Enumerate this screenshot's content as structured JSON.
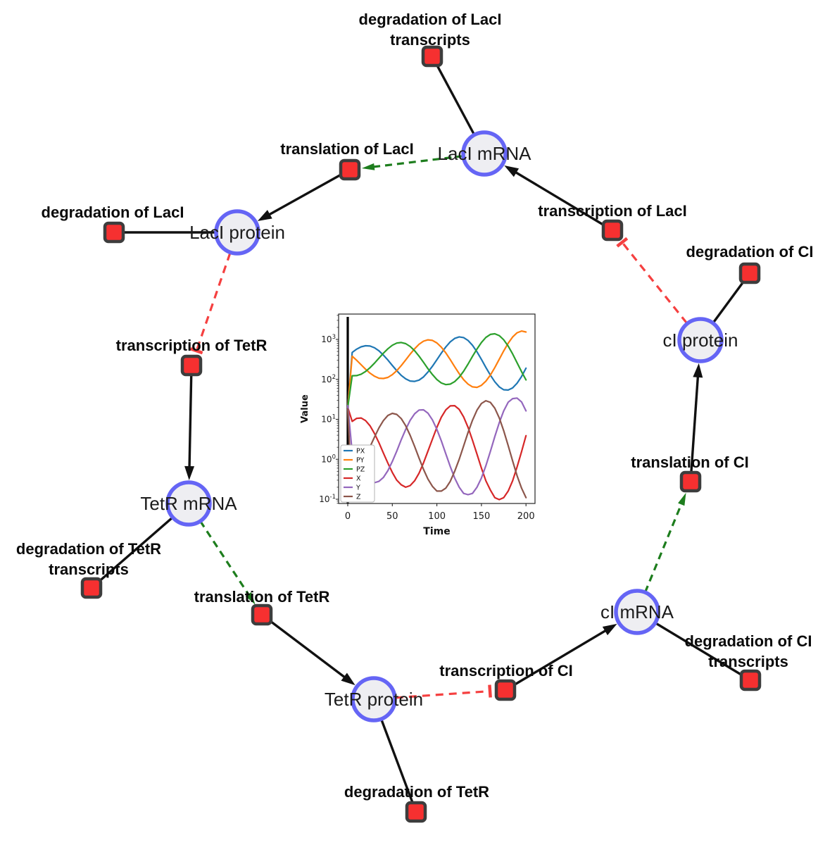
{
  "diagram": {
    "species_nodes": [
      {
        "id": "laci_mrna",
        "label": "LacI mRNA"
      },
      {
        "id": "laci_protein",
        "label": "LacI protein"
      },
      {
        "id": "tetr_mrna",
        "label": "TetR mRNA"
      },
      {
        "id": "tetr_protein",
        "label": "TetR protein"
      },
      {
        "id": "ci_mrna",
        "label": "cI mRNA"
      },
      {
        "id": "ci_protein",
        "label": "cI protein"
      }
    ],
    "reaction_nodes": [
      {
        "id": "deg_laci_tx",
        "label_lines": [
          "degradation of LacI",
          "transcripts"
        ]
      },
      {
        "id": "transl_laci",
        "label_lines": [
          "translation of LacI"
        ]
      },
      {
        "id": "deg_laci",
        "label_lines": [
          "degradation of LacI"
        ]
      },
      {
        "id": "tx_laci",
        "label_lines": [
          "transcription of LacI"
        ]
      },
      {
        "id": "deg_ci",
        "label_lines": [
          "degradation of CI"
        ]
      },
      {
        "id": "tx_tetr",
        "label_lines": [
          "transcription of TetR"
        ]
      },
      {
        "id": "deg_tetr_tx",
        "label_lines": [
          "degradation of TetR",
          "transcripts"
        ]
      },
      {
        "id": "transl_tetr",
        "label_lines": [
          "translation of TetR"
        ]
      },
      {
        "id": "deg_tetr",
        "label_lines": [
          "degradation of TetR"
        ]
      },
      {
        "id": "tx_ci",
        "label_lines": [
          "transcription of CI"
        ]
      },
      {
        "id": "deg_ci_tx",
        "label_lines": [
          "degradation of CI",
          "transcripts"
        ]
      },
      {
        "id": "transl_ci",
        "label_lines": [
          "translation of CI"
        ]
      }
    ],
    "edges": [
      {
        "from": "laci_mrna",
        "to": "deg_laci_tx",
        "type": "link"
      },
      {
        "from": "tx_laci",
        "to": "laci_mrna",
        "type": "produces"
      },
      {
        "from": "laci_mrna",
        "to": "transl_laci",
        "type": "activates"
      },
      {
        "from": "transl_laci",
        "to": "laci_protein",
        "type": "produces"
      },
      {
        "from": "laci_protein",
        "to": "deg_laci",
        "type": "link"
      },
      {
        "from": "laci_protein",
        "to": "tx_tetr",
        "type": "inhibits"
      },
      {
        "from": "tx_tetr",
        "to": "tetr_mrna",
        "type": "produces"
      },
      {
        "from": "tetr_mrna",
        "to": "deg_tetr_tx",
        "type": "link"
      },
      {
        "from": "tetr_mrna",
        "to": "transl_tetr",
        "type": "activates"
      },
      {
        "from": "transl_tetr",
        "to": "tetr_protein",
        "type": "produces"
      },
      {
        "from": "tetr_protein",
        "to": "deg_tetr",
        "type": "link"
      },
      {
        "from": "tetr_protein",
        "to": "tx_ci",
        "type": "inhibits"
      },
      {
        "from": "tx_ci",
        "to": "ci_mrna",
        "type": "produces"
      },
      {
        "from": "ci_mrna",
        "to": "deg_ci_tx",
        "type": "link"
      },
      {
        "from": "ci_mrna",
        "to": "transl_ci",
        "type": "activates"
      },
      {
        "from": "transl_ci",
        "to": "ci_protein",
        "type": "produces"
      },
      {
        "from": "ci_protein",
        "to": "deg_ci",
        "type": "link"
      },
      {
        "from": "ci_protein",
        "to": "tx_laci",
        "type": "inhibits"
      }
    ],
    "colors": {
      "species_fill": "#eeeef2",
      "species_stroke": "#6565f5",
      "reaction_fill": "#f63030",
      "reaction_stroke": "#3d3d3d",
      "edge_black": "#111111",
      "edge_activation": "#1d7d1d",
      "edge_inhibition": "#f54040"
    }
  },
  "chart_data": {
    "type": "line",
    "title": "",
    "xlabel": "Time",
    "ylabel": "Value",
    "y_scale": "log",
    "x_ticks": [
      0,
      50,
      100,
      150,
      200
    ],
    "y_tick_exponents": [
      -1,
      0,
      1,
      2,
      3
    ],
    "xlim": [
      -10,
      210
    ],
    "ylim_log": [
      -1.106,
      3.634
    ],
    "grid": false,
    "legend_position": "lower left",
    "t0_marker_line": true,
    "t": [
      0,
      5,
      10,
      15,
      20,
      25,
      30,
      35,
      40,
      45,
      50,
      55,
      60,
      65,
      70,
      75,
      80,
      85,
      90,
      95,
      100,
      105,
      110,
      115,
      120,
      125,
      130,
      135,
      140,
      145,
      150,
      155,
      160,
      165,
      170,
      175,
      180,
      185,
      190,
      195,
      200
    ],
    "series": [
      {
        "name": "PX",
        "color": "#1f77b4",
        "values": [
          20,
          473,
          571,
          653,
          695,
          683,
          618,
          518,
          405,
          304,
          223,
          165,
          126,
          103,
          91,
          89,
          96,
          115,
          152,
          213,
          310,
          454,
          649,
          868,
          1060,
          1155,
          1110,
          941,
          710,
          487,
          316,
          199,
          128,
          87,
          65,
          55,
          54,
          61,
          80,
          118,
          190
        ]
      },
      {
        "name": "PY",
        "color": "#ff7f0e",
        "values": [
          20,
          381,
          300,
          232,
          180,
          143,
          120,
          107,
          105,
          112,
          131,
          165,
          221,
          306,
          427,
          584,
          755,
          902,
          975,
          944,
          818,
          639,
          458,
          312,
          207,
          139,
          98,
          76,
          65,
          63,
          71,
          90,
          128,
          197,
          318,
          514,
          802,
          1148,
          1465,
          1620,
          1534
        ]
      },
      {
        "name": "PZ",
        "color": "#2ca02c",
        "values": [
          20,
          123,
          124,
          135,
          157,
          196,
          255,
          340,
          452,
          584,
          714,
          809,
          837,
          784,
          667,
          521,
          381,
          267,
          185,
          132,
          99,
          81,
          74,
          76,
          88,
          113,
          160,
          242,
          376,
          575,
          838,
          1121,
          1333,
          1385,
          1247,
          978,
          680,
          433,
          261,
          156,
          97
        ]
      },
      {
        "name": "X",
        "color": "#d62728",
        "values": [
          20,
          8.9,
          10.6,
          10.8,
          9.3,
          6.9,
          4.4,
          2.6,
          1.44,
          0.8,
          0.47,
          0.3,
          0.23,
          0.2,
          0.22,
          0.29,
          0.45,
          0.81,
          1.6,
          3.2,
          6.3,
          11.3,
          17.2,
          21.7,
          22,
          17.7,
          11.5,
          6.3,
          3,
          1.34,
          0.6,
          0.29,
          0.17,
          0.11,
          0.098,
          0.11,
          0.16,
          0.29,
          0.64,
          1.55,
          3.9
        ]
      },
      {
        "name": "Y",
        "color": "#9467bd",
        "values": [
          22,
          1.5,
          0.88,
          0.55,
          0.37,
          0.29,
          0.26,
          0.28,
          0.35,
          0.52,
          0.88,
          1.6,
          3.1,
          5.6,
          9.4,
          13.8,
          17.1,
          17.3,
          14.3,
          9.7,
          5.6,
          2.9,
          1.37,
          0.66,
          0.34,
          0.2,
          0.14,
          0.13,
          0.14,
          0.2,
          0.34,
          0.69,
          1.57,
          3.7,
          8.2,
          16.2,
          26.8,
          33,
          34,
          27.2,
          16.3
        ]
      },
      {
        "name": "Z",
        "color": "#8c564b",
        "values": [
          18,
          0.1,
          0.25,
          0.55,
          1.17,
          2.05,
          3.6,
          6.1,
          9.3,
          12.5,
          14.1,
          13.3,
          10.4,
          6.9,
          4,
          2.1,
          1.07,
          0.56,
          0.32,
          0.21,
          0.16,
          0.16,
          0.19,
          0.28,
          0.5,
          1,
          2.16,
          4.7,
          9.5,
          17,
          24.9,
          29.2,
          26.6,
          19,
          10.9,
          5.2,
          2.2,
          0.91,
          0.39,
          0.19,
          0.11
        ]
      }
    ]
  }
}
